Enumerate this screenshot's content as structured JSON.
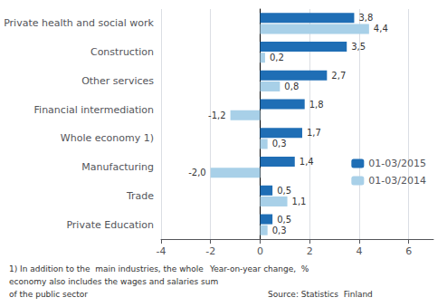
{
  "chart_data": {
    "type": "bar",
    "orientation": "horizontal",
    "categories": [
      "Private Education",
      "Trade",
      "Manufacturing",
      "Whole economy 1)",
      "Financial intermediation",
      "Other services",
      "Construction",
      "Private health and social work"
    ],
    "series": [
      {
        "name": "01-03/2015",
        "color": "#1f6eb5",
        "values": [
          0.5,
          0.5,
          1.4,
          1.7,
          1.8,
          2.7,
          3.5,
          3.8
        ],
        "value_labels": [
          "0,5",
          "0,5",
          "1,4",
          "1,7",
          "1,8",
          "2,7",
          "3,5",
          "3,8"
        ]
      },
      {
        "name": "01-03/2014",
        "color": "#a8d0e8",
        "values": [
          0.3,
          1.1,
          -2.0,
          0.3,
          -1.2,
          0.8,
          0.2,
          4.4
        ],
        "value_labels": [
          "0,3",
          "1,1",
          "-2,0",
          "0,3",
          "-1,2",
          "0,8",
          "0,2",
          "4,4"
        ]
      }
    ],
    "xlim": [
      -4,
      7
    ],
    "xticks": [
      -4,
      -2,
      0,
      2,
      4,
      6
    ],
    "xlabel": "Year-on-year change,  %",
    "annotations": [
      "1) In addition to the  main industries, the whole",
      "economy also includes the wages and salaries sum",
      "of the public sector",
      "Source: Statistics  Finland"
    ],
    "grid": true,
    "legend": "right",
    "data_labels": true
  }
}
